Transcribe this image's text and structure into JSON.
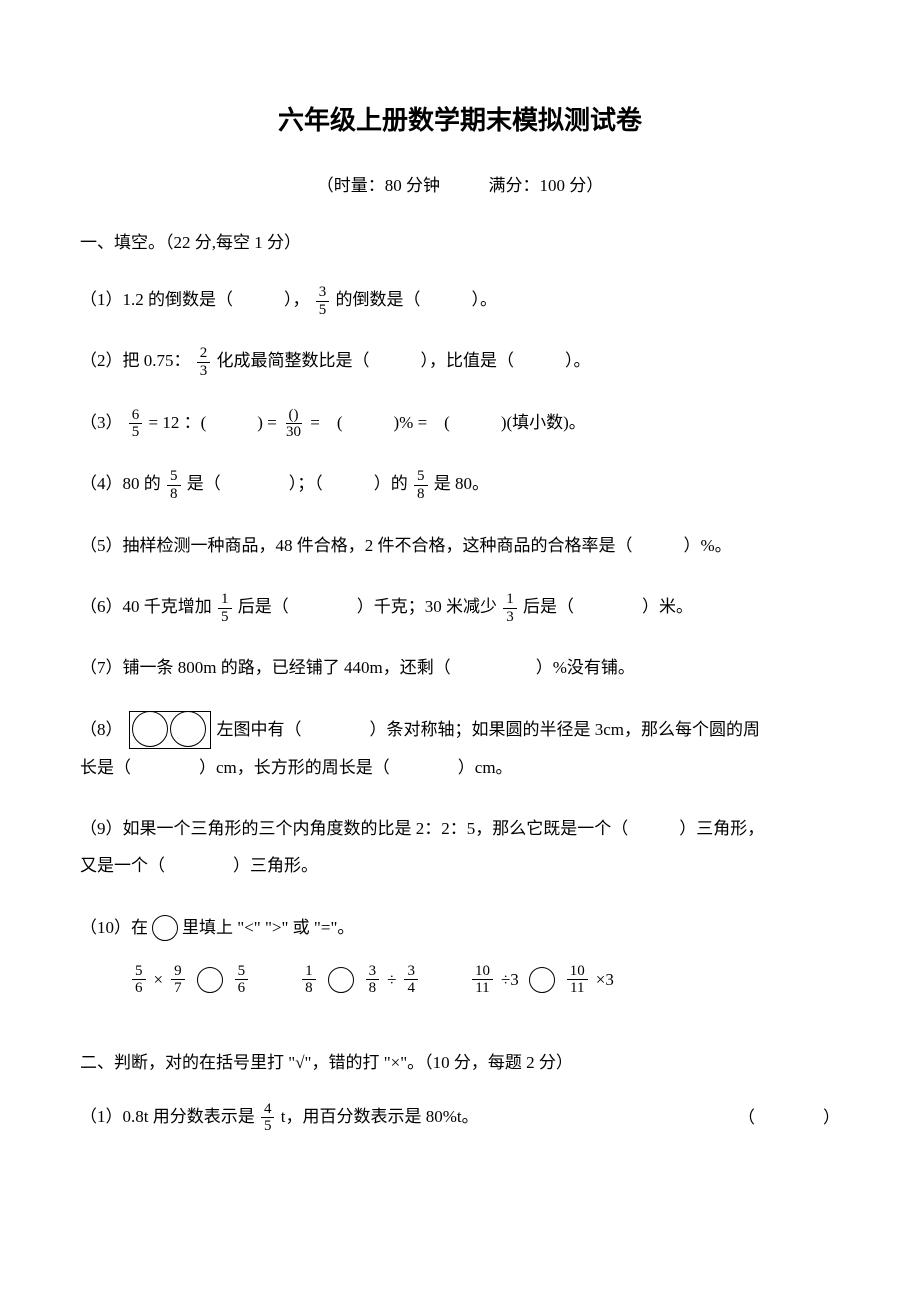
{
  "title": "六年级上册数学期末模拟测试卷",
  "subtitle_time": "（时量：80 分钟",
  "subtitle_score": "满分：100 分）",
  "section1": {
    "header": "一、填空。（22 分,每空 1 分）",
    "q1_a": "（1）1.2 的倒数是（　　　），",
    "q1_frac_n": "3",
    "q1_frac_d": "5",
    "q1_b": "的倒数是（　　　）。",
    "q2_a": "（2）把 0.75：",
    "q2_frac_n": "2",
    "q2_frac_d": "3",
    "q2_b": "化成最简整数比是（　　　），比值是（　　　）。",
    "q3_a": "（3）",
    "q3_f1_n": "6",
    "q3_f1_d": "5",
    "q3_b": "= 12 ：(　　　) =",
    "q3_f2_n": "()",
    "q3_f2_d": "30",
    "q3_c": "=　(　　　)% =　(　　　)(填小数)。",
    "q4_a": "（4）80 的",
    "q4_f1_n": "5",
    "q4_f1_d": "8",
    "q4_b": "是（　　　　）；（　　　）的",
    "q4_f2_n": "5",
    "q4_f2_d": "8",
    "q4_c": "是 80。",
    "q5": "（5）抽样检测一种商品，48 件合格，2 件不合格，这种商品的合格率是（　　　）%。",
    "q6_a": "（6）40 千克增加",
    "q6_f1_n": "1",
    "q6_f1_d": "5",
    "q6_b": "后是（　　　　）千克；30 米减少",
    "q6_f2_n": "1",
    "q6_f2_d": "3",
    "q6_c": "后是（　　　　）米。",
    "q7": "（7）铺一条 800m 的路，已经铺了 440m，还剩（　　　　　）%没有铺。",
    "q8_a": "（8）",
    "q8_b": "左图中有（　　　　）条对称轴；如果圆的半径是 3cm，那么每个圆的周",
    "q8_c": "长是（　　　　）cm，长方形的周长是（　　　　）cm。",
    "q9_a": "（9）如果一个三角形的三个内角度数的比是 2：2：5，那么它既是一个（　　　）三角形，",
    "q9_b": "又是一个（　　　　）三角形。",
    "q10_a": "（10）在",
    "q10_b": "里填上 \"<\" \">\" 或 \"=\"。",
    "c1_f1_n": "5",
    "c1_f1_d": "6",
    "c1_op": "×",
    "c1_f2_n": "9",
    "c1_f2_d": "7",
    "c1_r_n": "5",
    "c1_r_d": "6",
    "c2_f1_n": "1",
    "c2_f1_d": "8",
    "c2_r1_n": "3",
    "c2_r1_d": "8",
    "c2_op": "÷",
    "c2_r2_n": "3",
    "c2_r2_d": "4",
    "c3_f1_n": "10",
    "c3_f1_d": "11",
    "c3_op": "÷3",
    "c3_r_n": "10",
    "c3_r_d": "11",
    "c3_rop": "×3"
  },
  "section2": {
    "header": "二、判断，对的在括号里打 \"√\"，错的打 \"×\"。（10 分，每题 2 分）",
    "q1_a": "（1）0.8t 用分数表示是",
    "q1_frac_n": "4",
    "q1_frac_d": "5",
    "q1_b": "t，用百分数表示是 80%t。",
    "q1_paren": "（　　　　）"
  },
  "colors": {
    "text": "#000000",
    "background": "#ffffff"
  }
}
